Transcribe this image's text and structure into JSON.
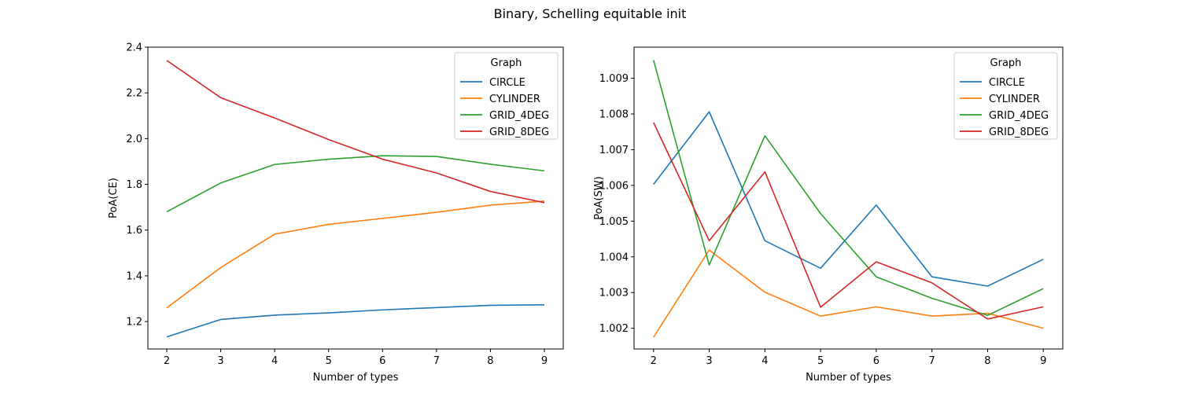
{
  "figure": {
    "title": "Binary, Schelling equitable init"
  },
  "chart_data": [
    {
      "type": "line",
      "title": "",
      "xlabel": "Number of types",
      "ylabel": "PoA(CE)",
      "x": [
        2,
        3,
        4,
        5,
        6,
        7,
        8,
        9
      ],
      "xticks": [
        "2",
        "3",
        "4",
        "5",
        "6",
        "7",
        "8",
        "9"
      ],
      "xlim": [
        1.65,
        9.35
      ],
      "ylim": [
        1.08,
        2.4
      ],
      "yticks": [
        "1.2",
        "1.4",
        "1.6",
        "1.8",
        "2.0",
        "2.2",
        "2.4"
      ],
      "ytick_values": [
        1.2,
        1.4,
        1.6,
        1.8,
        2.0,
        2.2,
        2.4
      ],
      "legend_title": "Graph",
      "legend_position": "top-right",
      "series": [
        {
          "name": "CIRCLE",
          "color": "#1f77b4",
          "values": [
            1.133,
            1.209,
            1.228,
            1.238,
            1.251,
            1.261,
            1.271,
            1.273
          ]
        },
        {
          "name": "CYLINDER",
          "color": "#ff7f0e",
          "values": [
            1.26,
            1.436,
            1.582,
            1.625,
            1.651,
            1.678,
            1.709,
            1.727
          ]
        },
        {
          "name": "GRID_4DEG",
          "color": "#2ca02c",
          "values": [
            1.68,
            1.806,
            1.887,
            1.91,
            1.925,
            1.922,
            1.888,
            1.859
          ]
        },
        {
          "name": "GRID_8DEG",
          "color": "#d62728",
          "values": [
            2.342,
            2.179,
            2.09,
            1.996,
            1.91,
            1.85,
            1.769,
            1.72
          ]
        }
      ]
    },
    {
      "type": "line",
      "title": "",
      "xlabel": "Number of types",
      "ylabel": "PoA(SW)",
      "x": [
        2,
        3,
        4,
        5,
        6,
        7,
        8,
        9
      ],
      "xticks": [
        "2",
        "3",
        "4",
        "5",
        "6",
        "7",
        "8",
        "9"
      ],
      "xlim": [
        1.65,
        9.35
      ],
      "ylim": [
        1.00142,
        1.00987
      ],
      "yticks": [
        "1.002",
        "1.003",
        "1.004",
        "1.005",
        "1.006",
        "1.007",
        "1.008",
        "1.009"
      ],
      "ytick_values": [
        1.002,
        1.003,
        1.004,
        1.005,
        1.006,
        1.007,
        1.008,
        1.009
      ],
      "legend_title": "Graph",
      "legend_position": "top-right",
      "series": [
        {
          "name": "CIRCLE",
          "color": "#1f77b4",
          "values": [
            1.00603,
            1.00806,
            1.00445,
            1.00368,
            1.00545,
            1.00344,
            1.00318,
            1.00393
          ]
        },
        {
          "name": "CYLINDER",
          "color": "#ff7f0e",
          "values": [
            1.00175,
            1.00419,
            1.00301,
            1.00234,
            1.0026,
            1.00234,
            1.00242,
            1.002
          ]
        },
        {
          "name": "GRID_4DEG",
          "color": "#2ca02c",
          "values": [
            1.00951,
            1.00377,
            1.00739,
            1.00521,
            1.00344,
            1.00284,
            1.00236,
            1.00311
          ]
        },
        {
          "name": "GRID_8DEG",
          "color": "#d62728",
          "values": [
            1.00776,
            1.00445,
            1.00638,
            1.00259,
            1.00386,
            1.00327,
            1.00226,
            1.0026
          ]
        }
      ]
    }
  ]
}
